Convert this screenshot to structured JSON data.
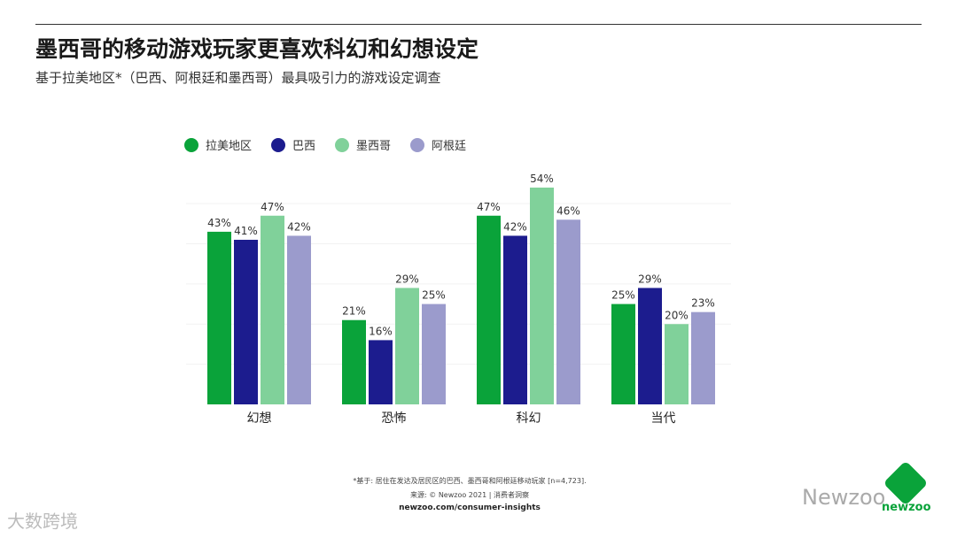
{
  "header": {
    "title": "墨西哥的移动游戏玩家更喜欢科幻和幻想设定",
    "subtitle": "基于拉美地区*（巴西、阿根廷和墨西哥）最具吸引力的游戏设定调查"
  },
  "chart_data": {
    "type": "bar",
    "categories": [
      "幻想",
      "恐怖",
      "科幻",
      "当代"
    ],
    "series": [
      {
        "name": "拉美地区",
        "color": "#0aa33a",
        "values": [
          43,
          21,
          47,
          25
        ]
      },
      {
        "name": "巴西",
        "color": "#1c1c8e",
        "values": [
          41,
          16,
          42,
          29
        ]
      },
      {
        "name": "墨西哥",
        "color": "#80d19a",
        "values": [
          47,
          29,
          54,
          20
        ]
      },
      {
        "name": "阿根廷",
        "color": "#9b9bcc",
        "values": [
          42,
          25,
          46,
          23
        ]
      }
    ],
    "value_suffix": "%",
    "ylim": [
      0,
      55
    ],
    "legend_position": "top-left",
    "grid": true
  },
  "footer": {
    "note": "*基于: 居住在发达及居民区的巴西、墨西哥和阿根廷移动玩家 [n=4,723].",
    "source": "来源: © Newzoo 2021 | 消费者洞察",
    "url": "newzoo.com/consumer-insights"
  },
  "watermarks": {
    "left": "大数跨境",
    "right": "Newzoo",
    "logo": "newzoo"
  }
}
